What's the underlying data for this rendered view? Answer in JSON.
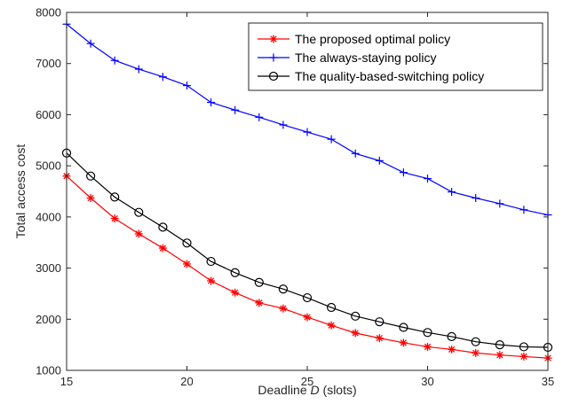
{
  "chart_data": {
    "type": "line",
    "title": "",
    "xlabel": {
      "before": "Deadline ",
      "italic": "D",
      "after": " (slots)"
    },
    "ylabel": "Total access cost",
    "xlim": [
      15,
      35
    ],
    "ylim": [
      1000,
      8000
    ],
    "xticks": [
      15,
      20,
      25,
      30,
      35
    ],
    "yticks": [
      1000,
      2000,
      3000,
      4000,
      5000,
      6000,
      7000,
      8000
    ],
    "grid": false,
    "legend_position": "top-right",
    "x": [
      15,
      16,
      17,
      18,
      19,
      20,
      21,
      22,
      23,
      24,
      25,
      26,
      27,
      28,
      29,
      30,
      31,
      32,
      33,
      34,
      35
    ],
    "series": [
      {
        "name": "The proposed optimal policy",
        "color": "#ff0000",
        "marker": "asterisk",
        "values": [
          4800,
          4370,
          3970,
          3670,
          3390,
          3080,
          2750,
          2520,
          2320,
          2210,
          2040,
          1880,
          1730,
          1630,
          1540,
          1460,
          1410,
          1340,
          1300,
          1270,
          1240
        ]
      },
      {
        "name": "The always-staying policy",
        "color": "#0000ff",
        "marker": "plus",
        "values": [
          7770,
          7390,
          7060,
          6890,
          6740,
          6570,
          6240,
          6090,
          5950,
          5800,
          5660,
          5520,
          5240,
          5100,
          4870,
          4750,
          4490,
          4370,
          4260,
          4140,
          4040
        ]
      },
      {
        "name": "The quality-based-switching policy",
        "color": "#000000",
        "marker": "circle",
        "values": [
          5250,
          4800,
          4390,
          4090,
          3800,
          3490,
          3130,
          2910,
          2720,
          2590,
          2420,
          2230,
          2060,
          1950,
          1840,
          1740,
          1660,
          1560,
          1500,
          1460,
          1450
        ]
      }
    ]
  }
}
